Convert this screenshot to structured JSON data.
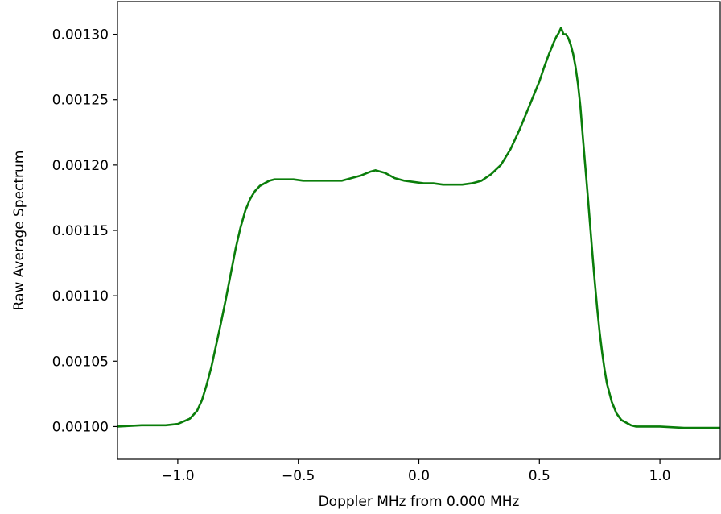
{
  "chart_data": {
    "type": "line",
    "title": "",
    "xlabel": "Doppler MHz from 0.000 MHz",
    "ylabel": "Raw Average Spectrum",
    "xlim": [
      -1.25,
      1.25
    ],
    "ylim": [
      0.000975,
      0.001325
    ],
    "grid": false,
    "legend": "none",
    "line_color": "#0a7d0a",
    "x_ticks": [
      -1.0,
      -0.5,
      0.0,
      0.5,
      1.0
    ],
    "x_tick_labels": [
      "−1.0",
      "−0.5",
      "0.0",
      "0.5",
      "1.0"
    ],
    "y_ticks": [
      0.001,
      0.00105,
      0.0011,
      0.00115,
      0.0012,
      0.00125,
      0.0013
    ],
    "y_tick_labels": [
      "0.00100",
      "0.00105",
      "0.00110",
      "0.00115",
      "0.00120",
      "0.00125",
      "0.00130"
    ],
    "series": [
      {
        "x": [
          -1.25,
          -1.15,
          -1.05,
          -1.0,
          -0.95,
          -0.92,
          -0.9,
          -0.88,
          -0.86,
          -0.84,
          -0.82,
          -0.8,
          -0.78,
          -0.76,
          -0.74,
          -0.72,
          -0.7,
          -0.68,
          -0.66,
          -0.64,
          -0.62,
          -0.6,
          -0.56,
          -0.52,
          -0.48,
          -0.44,
          -0.4,
          -0.36,
          -0.32,
          -0.28,
          -0.24,
          -0.2,
          -0.18,
          -0.16,
          -0.14,
          -0.12,
          -0.1,
          -0.06,
          -0.02,
          0.02,
          0.06,
          0.1,
          0.14,
          0.18,
          0.22,
          0.26,
          0.3,
          0.34,
          0.38,
          0.42,
          0.46,
          0.5,
          0.52,
          0.54,
          0.56,
          0.57,
          0.58,
          0.59,
          0.6,
          0.61,
          0.62,
          0.63,
          0.64,
          0.65,
          0.66,
          0.67,
          0.68,
          0.69,
          0.7,
          0.71,
          0.72,
          0.73,
          0.74,
          0.75,
          0.76,
          0.77,
          0.78,
          0.8,
          0.82,
          0.84,
          0.86,
          0.88,
          0.9,
          0.95,
          1.0,
          1.1,
          1.25
        ],
        "y": [
          0.001,
          0.001001,
          0.001001,
          0.001002,
          0.001006,
          0.001012,
          0.00102,
          0.001032,
          0.001046,
          0.001063,
          0.00108,
          0.001098,
          0.001117,
          0.001136,
          0.001152,
          0.001165,
          0.001174,
          0.00118,
          0.001184,
          0.001186,
          0.001188,
          0.001189,
          0.001189,
          0.001189,
          0.001188,
          0.001188,
          0.001188,
          0.001188,
          0.001188,
          0.00119,
          0.001192,
          0.001195,
          0.001196,
          0.001195,
          0.001194,
          0.001192,
          0.00119,
          0.001188,
          0.001187,
          0.001186,
          0.001186,
          0.001185,
          0.001185,
          0.001185,
          0.001186,
          0.001188,
          0.001193,
          0.0012,
          0.001212,
          0.001228,
          0.001246,
          0.001264,
          0.001275,
          0.001285,
          0.001294,
          0.001298,
          0.001301,
          0.001305,
          0.0013,
          0.0013,
          0.001297,
          0.001292,
          0.001285,
          0.001275,
          0.001262,
          0.001245,
          0.001222,
          0.0012,
          0.001178,
          0.001155,
          0.001132,
          0.00111,
          0.00109,
          0.001072,
          0.001057,
          0.001044,
          0.001033,
          0.001019,
          0.00101,
          0.001005,
          0.001003,
          0.001001,
          0.001,
          0.001,
          0.001,
          0.000999,
          0.000999
        ]
      }
    ]
  }
}
